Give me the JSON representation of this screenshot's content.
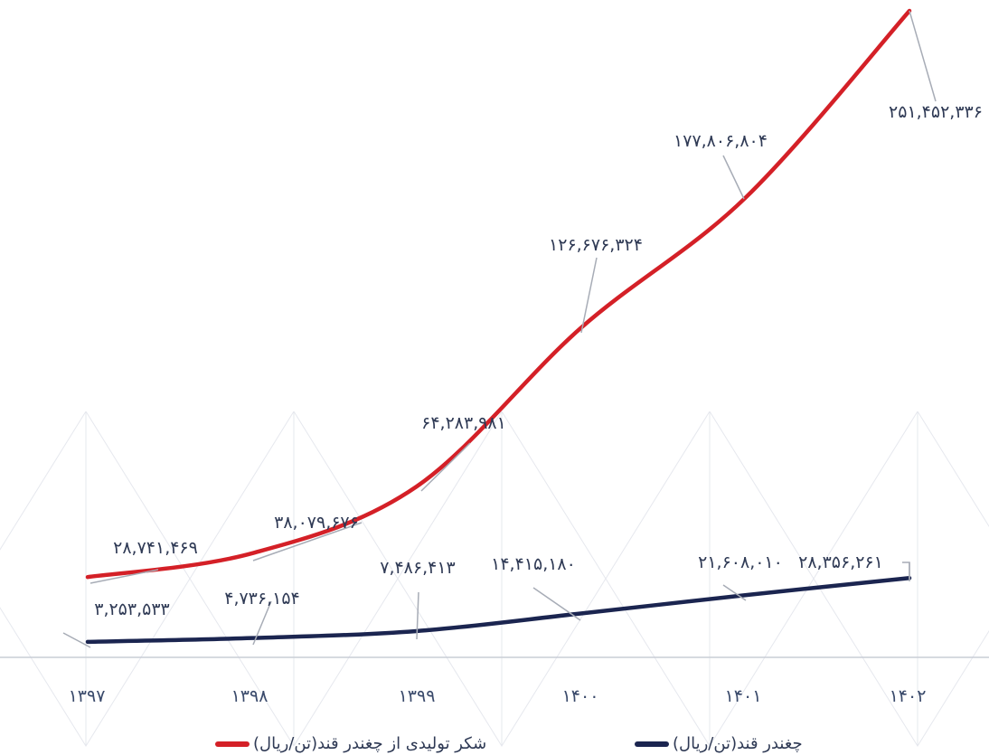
{
  "chart_data": {
    "type": "line",
    "title": "",
    "xlabel": "",
    "ylabel": "",
    "categories": [
      "۱۳۹۷",
      "۱۳۹۸",
      "۱۳۹۹",
      "۱۴۰۰",
      "۱۴۰۱",
      "۱۴۰۲"
    ],
    "x_values": [
      1397,
      1398,
      1399,
      1400,
      1401,
      1402
    ],
    "series": [
      {
        "name": "شکر تولیدی از چغندر قند(تن/ریال)",
        "color": "#d42027",
        "values": [
          28741469,
          38079676,
          64283981,
          126676324,
          177806804,
          251452336
        ],
        "labels": [
          "۲۸,۷۴۱,۴۶۹",
          "۳۸,۰۷۹,۶۷۶",
          "۶۴,۲۸۳,۹۸۱",
          "۱۲۶,۶۷۶,۳۲۴",
          "۱۷۷,۸۰۶,۸۰۴",
          "۲۵۱,۴۵۲,۳۳۶"
        ]
      },
      {
        "name": "چغندر قند(تن/ریال)",
        "color": "#1b2550",
        "values": [
          3253533,
          4736154,
          7486413,
          14415180,
          21608010,
          28356261
        ],
        "labels": [
          "۳,۲۵۳,۵۳۳",
          "۴,۷۳۶,۱۵۴",
          "۷,۴۸۶,۴۱۳",
          "۱۴,۴۱۵,۱۸۰",
          "۲۱,۶۰۸,۰۱۰",
          "۲۸,۳۵۶,۲۶۱"
        ]
      }
    ],
    "ylim": [
      0,
      251452336
    ],
    "grid": false,
    "legend": "bottom"
  }
}
